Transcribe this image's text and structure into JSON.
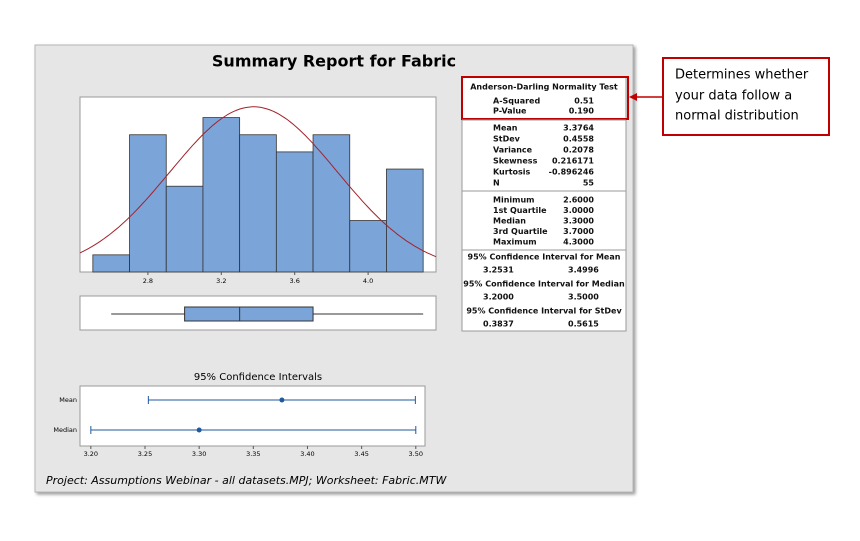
{
  "report": {
    "title": "Summary Report for Fabric",
    "footer": "Project: Assumptions Webinar - all datasets.MPJ; Worksheet: Fabric.MTW",
    "callout": [
      "Determines whether",
      "your data follow a",
      "normal distribution"
    ]
  },
  "stats": {
    "normality": {
      "title": "Anderson-Darling Normality Test",
      "rows": [
        [
          "A-Squared",
          "0.51"
        ],
        [
          "P-Value",
          "0.190"
        ]
      ]
    },
    "descriptive": [
      [
        "Mean",
        "3.3764"
      ],
      [
        "StDev",
        "0.4558"
      ],
      [
        "Variance",
        "0.2078"
      ],
      [
        "Skewness",
        "0.216171"
      ],
      [
        "Kurtosis",
        "-0.896246"
      ],
      [
        "N",
        "55"
      ]
    ],
    "quantiles": [
      [
        "Minimum",
        "2.6000"
      ],
      [
        "1st Quartile",
        "3.0000"
      ],
      [
        "Median",
        "3.3000"
      ],
      [
        "3rd Quartile",
        "3.7000"
      ],
      [
        "Maximum",
        "4.3000"
      ]
    ],
    "intervals": [
      {
        "title": "95% Confidence Interval for Mean",
        "values": [
          "3.2531",
          "3.4996"
        ]
      },
      {
        "title": "95% Confidence Interval for Median",
        "values": [
          "3.2000",
          "3.5000"
        ]
      },
      {
        "title": "95% Confidence Interval for StDev",
        "values": [
          "0.3837",
          "0.5615"
        ]
      }
    ]
  },
  "chart_data": [
    {
      "type": "histogram",
      "bins": [
        2.5,
        2.7,
        2.9,
        3.1,
        3.3,
        3.5,
        3.7,
        3.9,
        4.1,
        4.3
      ],
      "values": [
        1,
        8,
        5,
        9,
        8,
        7,
        8,
        3,
        6
      ],
      "color": "#7ba4d9",
      "curve_color": "#a3222c",
      "xlim": [
        2.43,
        4.37
      ],
      "xticks": [
        2.8,
        3.2,
        3.6,
        {
          "value": 4.0,
          "label": "4.0"
        }
      ],
      "ylim": [
        0,
        10.2
      ]
    },
    {
      "type": "box",
      "min": 2.6,
      "q1": 3.0,
      "median": 3.3,
      "q3": 3.7,
      "max": 4.3,
      "color": "#7ba4d9",
      "xlim": [
        2.43,
        4.37
      ]
    },
    {
      "type": "interval",
      "title": "95% Confidence Intervals",
      "categories": [
        "Mean",
        "Median"
      ],
      "values": [
        3.3764,
        3.3
      ],
      "lower": [
        3.2531,
        3.2
      ],
      "upper": [
        3.4996,
        3.5
      ],
      "color": "#1f5a9e",
      "xlim": [
        3.19,
        3.5085
      ],
      "xticks": [
        {
          "value": 3.2,
          "label": "3.20"
        },
        3.25,
        {
          "value": 3.3,
          "label": "3.30"
        },
        3.35,
        {
          "value": 3.4,
          "label": "3.40"
        },
        3.45,
        {
          "value": 3.5,
          "label": "3.50"
        }
      ]
    }
  ]
}
